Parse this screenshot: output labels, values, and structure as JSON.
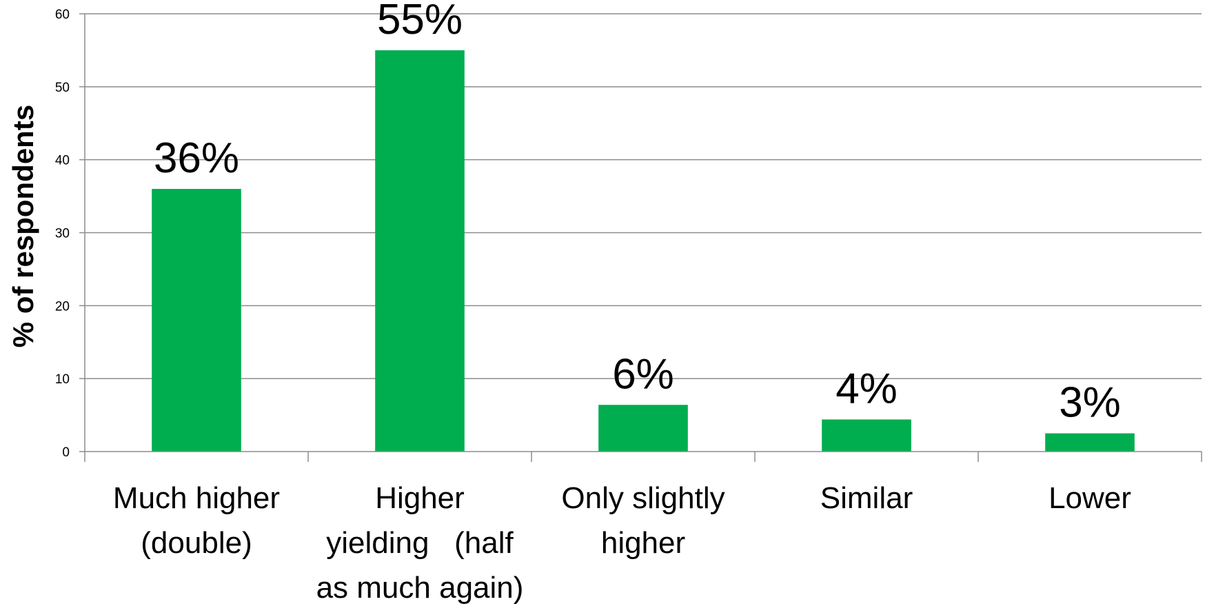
{
  "chart_data": {
    "type": "bar",
    "categories": [
      [
        "Much higher",
        "(double)"
      ],
      [
        "Higher",
        "yielding   (half",
        "as much again)"
      ],
      [
        "Only slightly",
        "higher"
      ],
      [
        "Similar"
      ],
      [
        "Lower"
      ]
    ],
    "values": [
      36,
      55,
      6.4,
      4.4,
      2.5
    ],
    "data_labels": [
      "36%",
      "55%",
      "6%",
      "4%",
      "3%"
    ],
    "title": "",
    "xlabel": "",
    "ylabel": "% of respondents",
    "ylim": [
      0,
      60
    ],
    "yticks": [
      0,
      10,
      20,
      30,
      40,
      50,
      60
    ],
    "grid": true,
    "legend": "none",
    "colors": {
      "bar": "#00AE4F",
      "grid": "#8c8c8c",
      "axis": "#8c8c8c"
    }
  }
}
